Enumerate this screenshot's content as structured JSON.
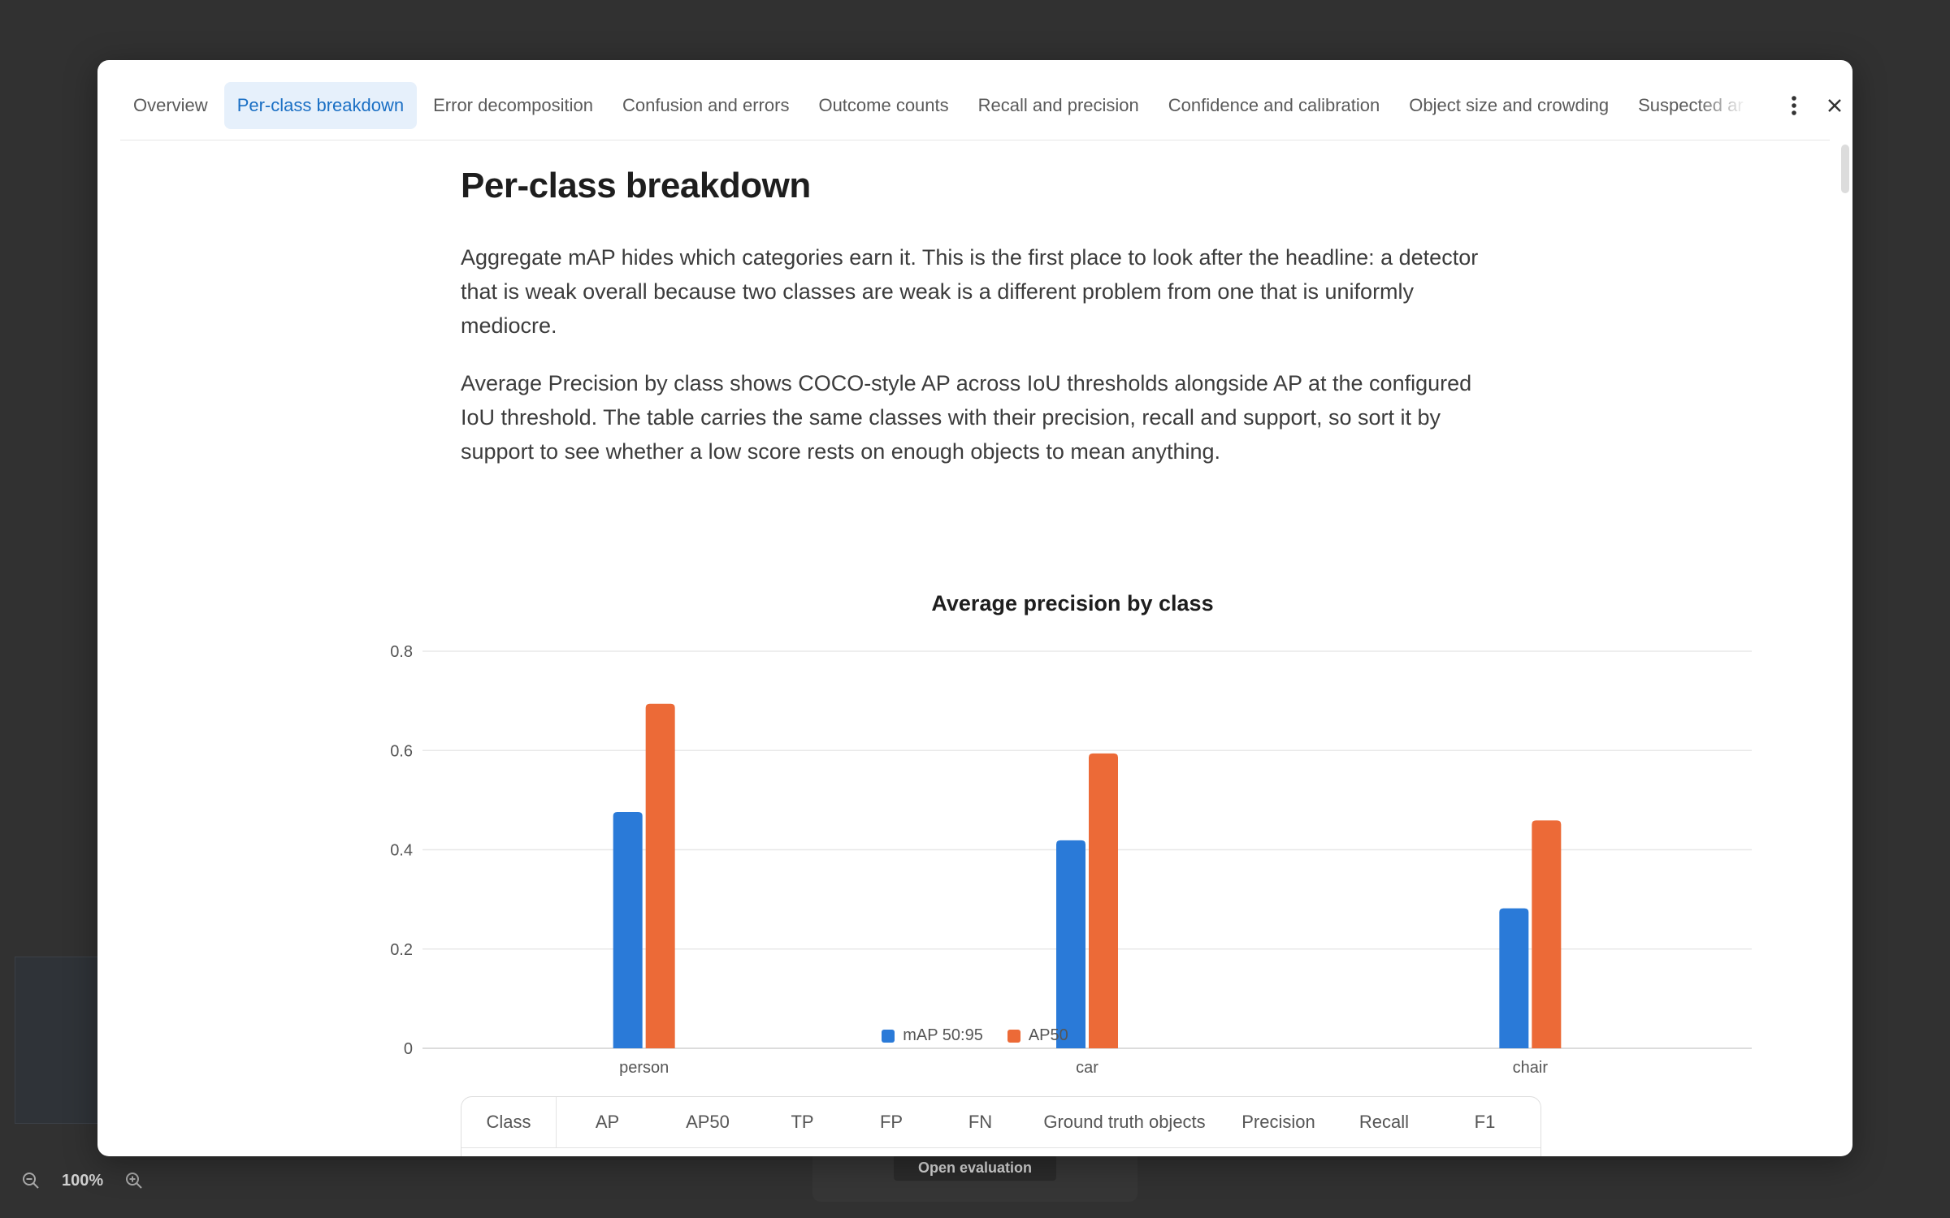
{
  "background": {
    "zoom": {
      "value": "100%",
      "zoom_out_icon": "zoom-out-icon",
      "zoom_in_icon": "zoom-in-icon"
    },
    "footer_button": "Open evaluation"
  },
  "tabs": [
    {
      "label": "Overview",
      "active": false
    },
    {
      "label": "Per-class breakdown",
      "active": true
    },
    {
      "label": "Error decomposition",
      "active": false
    },
    {
      "label": "Confusion and errors",
      "active": false
    },
    {
      "label": "Outcome counts",
      "active": false
    },
    {
      "label": "Recall and precision",
      "active": false
    },
    {
      "label": "Confidence and calibration",
      "active": false
    },
    {
      "label": "Object size and crowding",
      "active": false
    },
    {
      "label": "Suspected ar",
      "active": false
    }
  ],
  "icons": {
    "menu": "more-vertical-icon",
    "close": "close-icon"
  },
  "section": {
    "title": "Per-class breakdown",
    "paragraphs": [
      "Aggregate mAP hides which categories earn it. This is the first place to look after the headline: a detector that is weak overall because two classes are weak is a different problem from one that is uniformly mediocre.",
      "Average Precision by class shows COCO-style AP across IoU thresholds alongside AP at the configured IoU threshold. The table carries the same classes with their precision, recall and support, so sort it by support to see whether a low score rests on enough objects to mean anything."
    ]
  },
  "chart_data": {
    "type": "bar",
    "title": "Average precision by class",
    "categories": [
      "person",
      "car",
      "chair"
    ],
    "series": [
      {
        "name": "mAP 50:95",
        "values": [
          0.476,
          0.419,
          0.282
        ],
        "color": "#2a7ad8"
      },
      {
        "name": "AP50",
        "values": [
          0.694,
          0.594,
          0.459
        ],
        "color": "#ec6a37"
      }
    ],
    "ylim": [
      0,
      0.8
    ],
    "yticks": [
      "0",
      "0.2",
      "0.4",
      "0.6",
      "0.8"
    ],
    "grid": true,
    "legend": "bottom-center"
  },
  "table": {
    "headers": [
      "Class",
      "AP",
      "AP50",
      "TP",
      "FP",
      "FN",
      "Ground truth objects",
      "Precision",
      "Recall",
      "F1"
    ]
  }
}
